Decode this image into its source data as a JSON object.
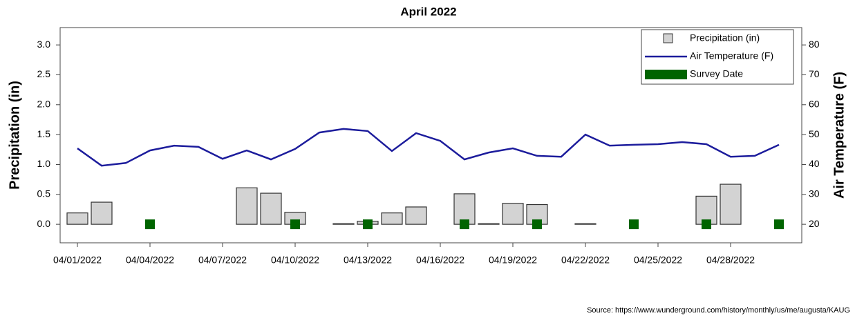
{
  "chart_data": {
    "type": "bar-line",
    "title": "April 2022",
    "y_label": "Precipitation (in)",
    "y2_label": "Air Temperature (F)",
    "source": "Source: https://www.wunderground.com/history/monthly/us/me/augusta/KAUG",
    "categories": [
      "04/01/2022",
      null,
      null,
      "04/04/2022",
      null,
      null,
      "04/07/2022",
      null,
      null,
      "04/10/2022",
      null,
      null,
      "04/13/2022",
      null,
      null,
      "04/16/2022",
      null,
      null,
      "04/19/2022",
      null,
      null,
      "04/22/2022",
      null,
      null,
      "04/25/2022",
      null,
      null,
      "04/28/2022",
      null,
      null
    ],
    "series": [
      {
        "name": "Precipitation (in)",
        "type": "bar",
        "color": "#d3d3d3",
        "axis": "y",
        "values": [
          0.19,
          0.37,
          0,
          0,
          0,
          0,
          0,
          0.61,
          0.52,
          0.2,
          0,
          0.01,
          0.05,
          0.19,
          0.29,
          0,
          0.51,
          0.01,
          0.35,
          0.33,
          0,
          0.01,
          0,
          0,
          0,
          0,
          0.47,
          0.67,
          0,
          0
        ]
      },
      {
        "name": "Air Temperature (F)",
        "type": "line",
        "color": "#1c1c9c",
        "axis": "y2",
        "values": [
          45.4,
          39.6,
          40.5,
          44.7,
          46.3,
          45.9,
          41.9,
          44.7,
          41.7,
          45.2,
          50.7,
          51.9,
          51.2,
          44.5,
          50.5,
          47.9,
          41.7,
          44.0,
          45.4,
          42.9,
          42.6,
          50.0,
          46.3,
          46.6,
          46.8,
          47.5,
          46.8,
          42.6,
          42.9,
          46.6
        ]
      },
      {
        "name": "Survey Date",
        "type": "marker",
        "color": "#006400",
        "axis": "y",
        "values": [
          null,
          null,
          null,
          0,
          null,
          null,
          null,
          null,
          null,
          0,
          null,
          null,
          0,
          null,
          null,
          null,
          0,
          null,
          null,
          0,
          null,
          null,
          null,
          0,
          null,
          null,
          0,
          null,
          null,
          0
        ]
      }
    ],
    "ylim": [
      -0.31,
      3.29
    ],
    "yticks": [
      {
        "value": 0,
        "label": "0.0"
      },
      0.5,
      {
        "value": 1,
        "label": "1.0"
      },
      1.5,
      {
        "value": 2,
        "label": "2.0"
      },
      2.5,
      {
        "value": 3,
        "label": "3.0"
      }
    ],
    "y2lim": [
      13.8,
      85.8
    ],
    "y2ticks": [
      20,
      30,
      40,
      50,
      60,
      70,
      80
    ],
    "legend": "top-right"
  }
}
